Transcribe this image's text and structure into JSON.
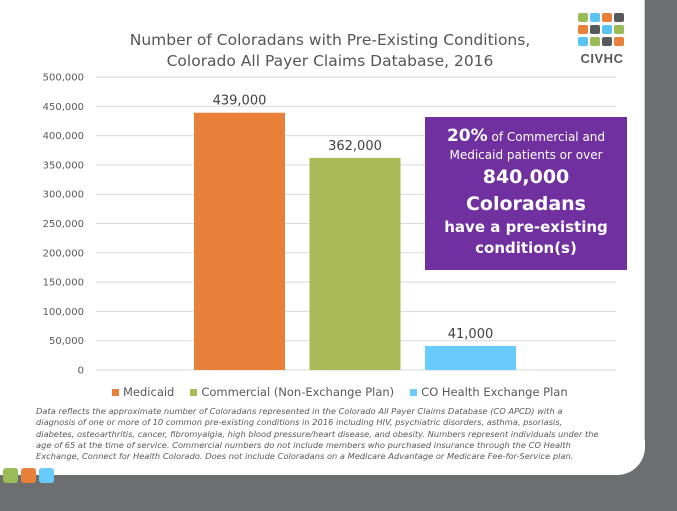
{
  "title_line1": "Number of Coloradans with Pre-Existing Conditions,",
  "title_line2": "Colorado All Payer Claims Database, 2016",
  "logo": {
    "text": "CIVHC",
    "grid_colors": [
      [
        "#9bbb59",
        "#58c5f0",
        "#e8803a",
        "#58595b"
      ],
      [
        "#e8803a",
        "#58595b",
        "#58c5f0",
        "#9bbb59"
      ],
      [
        "#58c5f0",
        "#9bbb59",
        "#58595b",
        "#e8803a"
      ]
    ]
  },
  "colors": {
    "medicaid": "#e8803a",
    "commercial": "#aaba56",
    "exchange": "#69cbfc",
    "callout_bg": "#7030a0",
    "frame": "#6d6e70"
  },
  "chart_data": {
    "type": "bar",
    "title": "Number of Coloradans with Pre-Existing Conditions, Colorado All Payer Claims Database, 2016",
    "xlabel": "",
    "ylabel": "",
    "ylim": [
      0,
      500000
    ],
    "yticks": [
      0,
      50000,
      100000,
      150000,
      200000,
      250000,
      300000,
      350000,
      400000,
      450000,
      500000
    ],
    "ytick_labels": [
      "0",
      "50,000",
      "100,000",
      "150,000",
      "200,000",
      "250,000",
      "300,000",
      "350,000",
      "400,000",
      "450,000",
      "500,000"
    ],
    "grid": true,
    "legend_position": "bottom",
    "series": [
      {
        "name": "Medicaid",
        "value": 439000,
        "label": "439,000",
        "color": "#e8803a"
      },
      {
        "name": "Commercial (Non-Exchange Plan)",
        "value": 362000,
        "label": "362,000",
        "color": "#aaba56"
      },
      {
        "name": "CO Health Exchange Plan",
        "value": 41000,
        "label": "41,000",
        "color": "#69cbfc"
      }
    ]
  },
  "callout": {
    "pct": "20%",
    "line1_rest": " of Commercial and",
    "line2": "Medicaid patients or over",
    "line3": "840,000",
    "line4": "Coloradans",
    "line5": "have a pre-existing",
    "line6": "condition(s)"
  },
  "legend": [
    {
      "label": "Medicaid",
      "color": "#e8803a"
    },
    {
      "label": "Commercial (Non-Exchange Plan)",
      "color": "#aaba56"
    },
    {
      "label": "CO Health Exchange Plan",
      "color": "#69cbfc"
    }
  ],
  "footnote": "Data reflects the approximate number of Coloradans represented in the Colorado All Payer Claims Database (CO APCD) with a diagnosis of one or more of 10 common pre-existing conditions in 2016 including HIV, psychiatric disorders, asthma, psoriasis, diabetes, osteoarthritis, cancer, fibromyalgia, high blood pressure/heart disease, and obesity. Numbers represent individuals under the age of 65 at the time of service. Commercial numbers do not include members who purchased insurance through the CO Health Exchange, Connect for Health Colorado. Does not include Coloradans on a Medicare Advantage or Medicare Fee-for-Service plan.",
  "corner_squares": [
    "#9bbb59",
    "#e8803a",
    "#69cbfc"
  ]
}
